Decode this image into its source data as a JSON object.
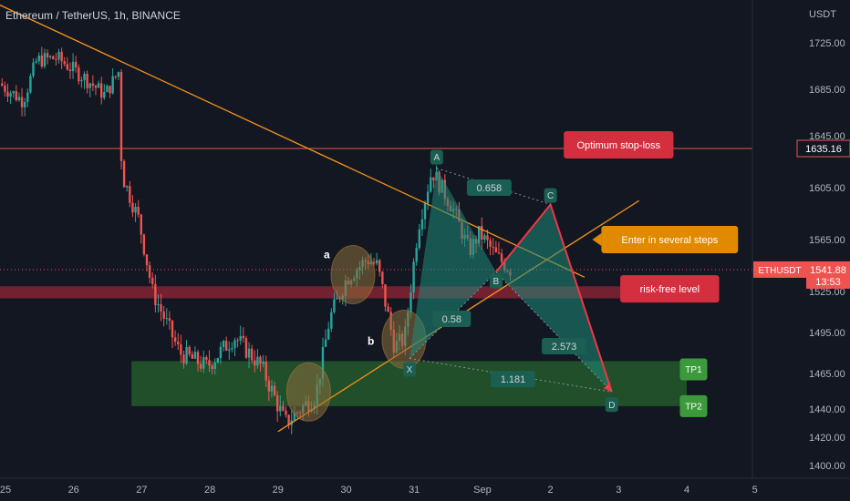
{
  "header": {
    "symbol_title": "Ethereum / TetherUS, 1h, BINANCE"
  },
  "currency": "USDT",
  "colors": {
    "background": "#131722",
    "up": "#26a69a",
    "down": "#ef5350",
    "trendline": "#f7931a",
    "stop_line": "#ef5350",
    "harmonic_fill": "#1e8a7a",
    "harmonic_line": "#f23645",
    "support_zone": "#2e7d32",
    "resistance_band": "#b2283a",
    "circle_fill": "#8d6e3a",
    "callout_red": "#d32f3f",
    "callout_orange": "#e08a00",
    "callout_green": "#3c9a3c",
    "pattern_label_bg": "#1b5e52"
  },
  "chart_data": {
    "type": "candlestick",
    "title": "Ethereum / TetherUS, 1h, BINANCE",
    "ylim": [
      1395,
      1765
    ],
    "y_ticks": [
      {
        "value": 1725,
        "label": "1725.00"
      },
      {
        "value": 1685,
        "label": "1685.00"
      },
      {
        "value": 1645,
        "label": "1645.00"
      },
      {
        "value": 1605,
        "label": "1605.00"
      },
      {
        "value": 1565,
        "label": "1565.00"
      },
      {
        "value": 1525,
        "label": "1525.00"
      },
      {
        "value": 1495,
        "label": "1495.00"
      },
      {
        "value": 1465,
        "label": "1465.00"
      },
      {
        "value": 1440,
        "label": "1440.00"
      },
      {
        "value": 1420,
        "label": "1420.00"
      },
      {
        "value": 1400,
        "label": "1400.00"
      }
    ],
    "x_ticks": [
      "25",
      "26",
      "27",
      "28",
      "29",
      "30",
      "31",
      "Sep",
      "2",
      "3",
      "4",
      "5"
    ],
    "current_price": {
      "symbol": "ETHUSDT",
      "price": "1541.88",
      "countdown": "13:53",
      "value": 1541.88
    },
    "stop_loss_price": {
      "label": "1635.16",
      "value": 1635.16
    },
    "price_path": [
      {
        "day": 24.95,
        "price": 1690
      },
      {
        "day": 25.3,
        "price": 1675
      },
      {
        "day": 25.5,
        "price": 1710
      },
      {
        "day": 25.8,
        "price": 1712
      },
      {
        "day": 26.2,
        "price": 1695
      },
      {
        "day": 26.5,
        "price": 1680
      },
      {
        "day": 26.7,
        "price": 1700
      },
      {
        "day": 26.75,
        "price": 1615
      },
      {
        "day": 27.0,
        "price": 1580
      },
      {
        "day": 27.2,
        "price": 1525
      },
      {
        "day": 27.6,
        "price": 1480
      },
      {
        "day": 28.0,
        "price": 1470
      },
      {
        "day": 28.4,
        "price": 1492
      },
      {
        "day": 28.8,
        "price": 1470
      },
      {
        "day": 29.15,
        "price": 1430
      },
      {
        "day": 29.6,
        "price": 1450
      },
      {
        "day": 29.8,
        "price": 1505
      },
      {
        "day": 30.05,
        "price": 1535
      },
      {
        "day": 30.35,
        "price": 1550
      },
      {
        "day": 30.5,
        "price": 1545
      },
      {
        "day": 30.75,
        "price": 1485
      },
      {
        "day": 30.9,
        "price": 1490
      },
      {
        "day": 31.1,
        "price": 1575
      },
      {
        "day": 31.3,
        "price": 1618
      },
      {
        "day": 31.6,
        "price": 1590
      },
      {
        "day": 31.85,
        "price": 1556
      },
      {
        "day": 32.0,
        "price": 1570
      },
      {
        "day": 32.25,
        "price": 1552
      },
      {
        "day": 32.45,
        "price": 1542
      }
    ],
    "trendlines": [
      {
        "name": "descending-resistance",
        "from": {
          "day": 24.9,
          "price": 1758
        },
        "to": {
          "day": 33.5,
          "price": 1536
        }
      },
      {
        "name": "ascending-support",
        "from": {
          "day": 29.0,
          "price": 1424
        },
        "to": {
          "day": 34.3,
          "price": 1595
        }
      }
    ],
    "harmonic_pattern": {
      "points": [
        {
          "label": "X",
          "day": 30.93,
          "price": 1476
        },
        {
          "label": "A",
          "day": 31.33,
          "price": 1620
        },
        {
          "label": "B",
          "day": 32.2,
          "price": 1540
        },
        {
          "label": "C",
          "day": 33.0,
          "price": 1592
        },
        {
          "label": "D",
          "day": 33.9,
          "price": 1452
        }
      ],
      "ratios": [
        {
          "label": "0.658",
          "day": 32.1,
          "price": 1605
        },
        {
          "label": "0.58",
          "day": 31.55,
          "price": 1505
        },
        {
          "label": "2.573",
          "day": 33.2,
          "price": 1485
        },
        {
          "label": "1.181",
          "day": 32.45,
          "price": 1461
        }
      ]
    },
    "zones": [
      {
        "name": "support-zone",
        "from_day": 26.85,
        "to_day": 35.0,
        "price_top": 1474,
        "price_bottom": 1442
      },
      {
        "name": "resistance-band",
        "from_day": 24.9,
        "to_day": 35.0,
        "price_top": 1529,
        "price_bottom": 1520
      }
    ],
    "highlight_circles": [
      {
        "label": "a",
        "day": 30.1,
        "price": 1538
      },
      {
        "label": "b",
        "day": 30.85,
        "price": 1490
      },
      {
        "label": "",
        "day": 29.45,
        "price": 1452
      }
    ],
    "annotations": [
      {
        "text": "Optimum stop-loss",
        "kind": "red",
        "day": 34.0,
        "price": 1638
      },
      {
        "text": "Enter in several steps",
        "kind": "orange",
        "day": 34.75,
        "price": 1565
      },
      {
        "text": "risk-free level",
        "kind": "red",
        "day": 34.75,
        "price": 1527
      },
      {
        "text": "TP1",
        "kind": "green",
        "day": 35.1,
        "price": 1468
      },
      {
        "text": "TP2",
        "kind": "green",
        "day": 35.1,
        "price": 1442
      }
    ]
  }
}
